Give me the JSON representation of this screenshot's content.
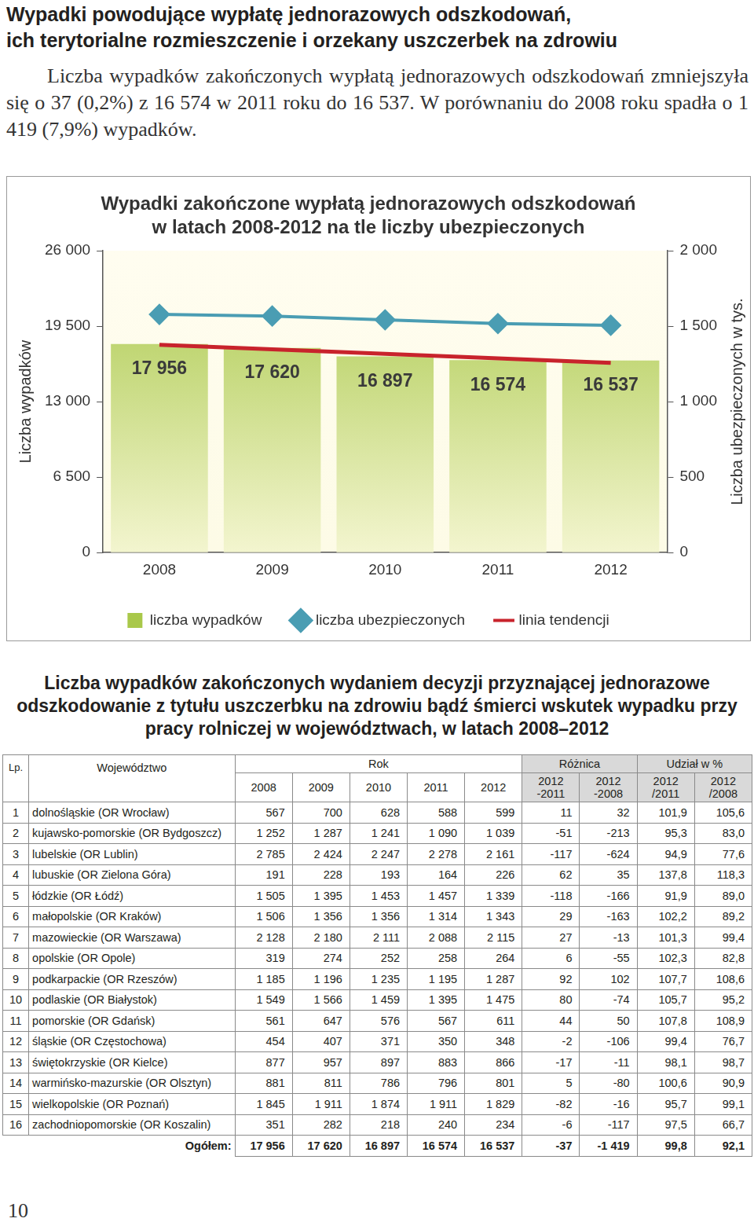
{
  "header": {
    "title": [
      "Wypadki powodujące wypłatę jednorazowych odszkodowań,",
      "ich terytorialne rozmieszczenie i orzekany uszczerbek na zdrowiu"
    ]
  },
  "paragraph": "Liczba wypadków zakończonych wypłatą jednorazowych odszkodowań zmniejszyła się o 37 (0,2%) z 16 574 w 2011 roku do 16 537. W porównaniu do 2008 roku spadła o 1 419 (7,9%) wypadków.",
  "chart_data": {
    "type": "bar",
    "title": [
      "Wypadki zakończone wypłatą jednorazowych odszkodowań",
      "w latach 2008-2012 na tle liczby ubezpieczonych"
    ],
    "categories": [
      "2008",
      "2009",
      "2010",
      "2011",
      "2012"
    ],
    "series": [
      {
        "name": "liczba wypadków",
        "type": "bar",
        "color": "#a9c84a",
        "values": [
          17956,
          17620,
          16897,
          16574,
          16537
        ],
        "value_labels": [
          "17 956",
          "17 620",
          "16 897",
          "16 574",
          "16 537"
        ]
      },
      {
        "name": "liczba ubezpieczonych",
        "type": "line",
        "color": "#4a9db3",
        "marker": "diamond",
        "axis": "y2",
        "values": [
          1578,
          1567,
          1542,
          1517,
          1506
        ]
      },
      {
        "name": "linia tendencji",
        "type": "line",
        "color": "#c8232c",
        "marker": "none",
        "values": [
          17890,
          17500,
          17120,
          16730,
          16340
        ]
      }
    ],
    "ylabel": "Liczba wypadków",
    "y2label": "Liczba ubezpieczonych w tys.",
    "ylim": [
      0,
      26000
    ],
    "yticks": [
      0,
      {
        "value": 6500,
        "label": "6 500"
      },
      {
        "value": 13000,
        "label": "13 000"
      },
      {
        "value": 19500,
        "label": "19 500"
      },
      {
        "value": 26000,
        "label": "26 000"
      }
    ],
    "y2lim": [
      0,
      2000
    ],
    "y2ticks": [
      0,
      500,
      {
        "value": 1000,
        "label": "1 000"
      },
      {
        "value": 1500,
        "label": "1 500"
      },
      {
        "value": 2000,
        "label": "2 000"
      }
    ],
    "grid": false,
    "legend": "bottom",
    "data_labels": true
  },
  "table_title": "Liczba wypadków zakończonych wydaniem decyzji przyznającej jednorazowe odszkodowanie z tytułu uszczerbku na zdrowiu bądź śmierci wskutek wypadku przy pracy rolniczej w województwach, w latach 2008–2012",
  "table": {
    "header": {
      "lp": "Lp.",
      "region": "Województwo",
      "groups": [
        {
          "label": "Rok",
          "columns": [
            [
              "2008"
            ],
            [
              "2009"
            ],
            [
              "2010"
            ],
            [
              "2011"
            ],
            [
              "2012"
            ]
          ]
        },
        {
          "label": "Różnica",
          "columns": [
            [
              "2012",
              "-2011"
            ],
            [
              "2012",
              "-2008"
            ]
          ]
        },
        {
          "label": "Udział w %",
          "columns": [
            [
              "2012",
              "/2011"
            ],
            [
              "2012",
              "/2008"
            ]
          ]
        }
      ]
    },
    "rows": [
      [
        "1",
        "dolnośląskie (OR Wrocław)",
        "567",
        "700",
        "628",
        "588",
        "599",
        "11",
        "32",
        "101,9",
        "105,6"
      ],
      [
        "2",
        "kujawsko-pomorskie (OR Bydgoszcz)",
        "1 252",
        "1 287",
        "1 241",
        "1 090",
        "1 039",
        "-51",
        "-213",
        "95,3",
        "83,0"
      ],
      [
        "3",
        "lubelskie (OR Lublin)",
        "2 785",
        "2 424",
        "2 247",
        "2 278",
        "2 161",
        "-117",
        "-624",
        "94,9",
        "77,6"
      ],
      [
        "4",
        "lubuskie (OR Zielona Góra)",
        "191",
        "228",
        "193",
        "164",
        "226",
        "62",
        "35",
        "137,8",
        "118,3"
      ],
      [
        "5",
        "łódzkie (OR Łódź)",
        "1 505",
        "1 395",
        "1 453",
        "1 457",
        "1 339",
        "-118",
        "-166",
        "91,9",
        "89,0"
      ],
      [
        "6",
        "małopolskie (OR Kraków)",
        "1 506",
        "1 356",
        "1 356",
        "1 314",
        "1 343",
        "29",
        "-163",
        "102,2",
        "89,2"
      ],
      [
        "7",
        "mazowieckie (OR Warszawa)",
        "2 128",
        "2 180",
        "2 111",
        "2 088",
        "2 115",
        "27",
        "-13",
        "101,3",
        "99,4"
      ],
      [
        "8",
        "opolskie (OR Opole)",
        "319",
        "274",
        "252",
        "258",
        "264",
        "6",
        "-55",
        "102,3",
        "82,8"
      ],
      [
        "9",
        "podkarpackie (OR Rzeszów)",
        "1 185",
        "1 196",
        "1 235",
        "1 195",
        "1 287",
        "92",
        "102",
        "107,7",
        "108,6"
      ],
      [
        "10",
        "podlaskie (OR Białystok)",
        "1 549",
        "1 566",
        "1 459",
        "1 395",
        "1 475",
        "80",
        "-74",
        "105,7",
        "95,2"
      ],
      [
        "11",
        "pomorskie (OR Gdańsk)",
        "561",
        "647",
        "576",
        "567",
        "611",
        "44",
        "50",
        "107,8",
        "108,9"
      ],
      [
        "12",
        "śląskie (OR Częstochowa)",
        "454",
        "407",
        "371",
        "350",
        "348",
        "-2",
        "-106",
        "99,4",
        "76,7"
      ],
      [
        "13",
        "świętokrzyskie (OR Kielce)",
        "877",
        "957",
        "897",
        "883",
        "866",
        "-17",
        "-11",
        "98,1",
        "98,7"
      ],
      [
        "14",
        "warmińsko-mazurskie (OR Olsztyn)",
        "881",
        "811",
        "786",
        "796",
        "801",
        "5",
        "-80",
        "100,6",
        "90,9"
      ],
      [
        "15",
        "wielkopolskie (OR Poznań)",
        "1 845",
        "1 911",
        "1 874",
        "1 911",
        "1 829",
        "-82",
        "-16",
        "95,7",
        "99,1"
      ],
      [
        "16",
        "zachodniopomorskie (OR Koszalin)",
        "351",
        "282",
        "218",
        "240",
        "234",
        "-6",
        "-117",
        "97,5",
        "66,7"
      ]
    ],
    "total": {
      "label": "Ogółem:",
      "values": [
        "17 956",
        "17 620",
        "16 897",
        "16 574",
        "16 537",
        "-37",
        "-1 419",
        "99,8",
        "92,1"
      ]
    }
  },
  "page_number": "10"
}
